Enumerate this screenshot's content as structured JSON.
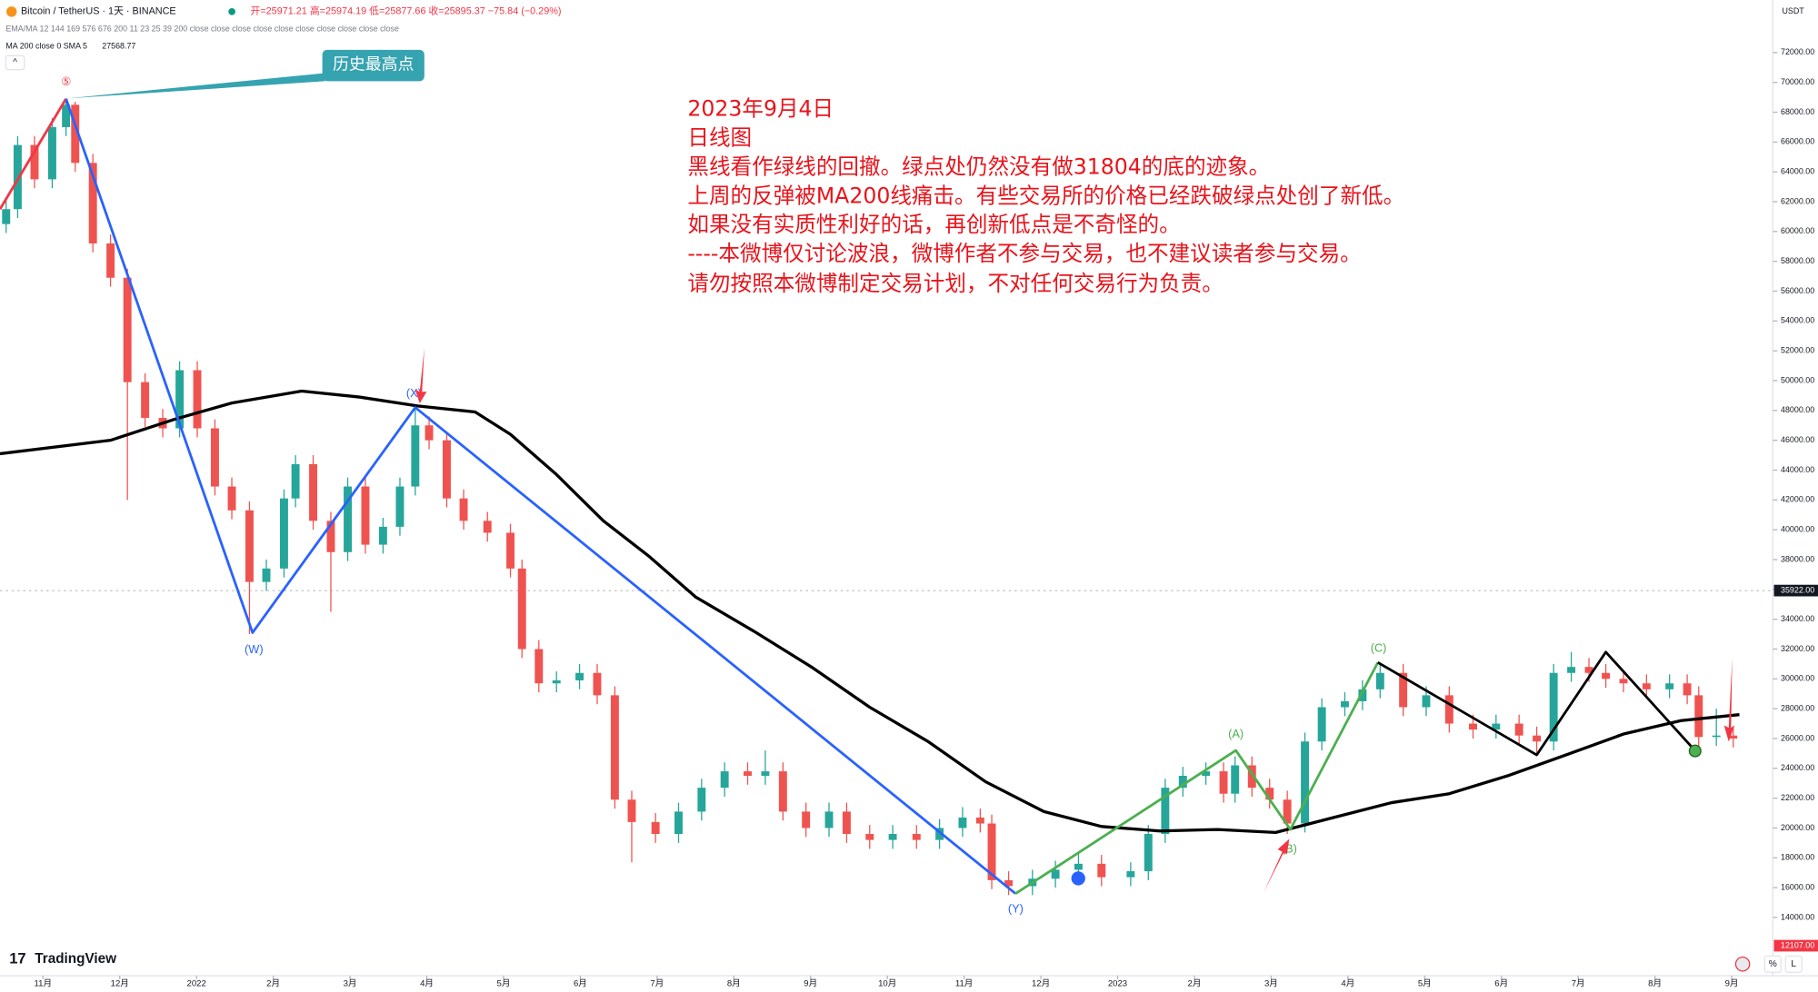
{
  "chart_data": {
    "type": "candlestick",
    "title": "Bitcoin / TetherUS · 1天 · BINANCE",
    "ohlc_text": "开=25971.21 高=25974.19 低=25877.66 收=25895.37 −75.84 (−0.29%)",
    "indicator_text": "EMA/MA 12 144 169 576 676 200 11 23 25 39 200 close close close close close close close close close close",
    "ma_text": "MA 200 close 0 SMA 5",
    "ma_value_label": "27568.77",
    "currency": "USDT",
    "logo": "TradingView",
    "ath_label": "历史最高点",
    "buttons": [
      "%",
      "L"
    ],
    "annotation": [
      "2023年9月4日",
      "日线图",
      "黑线看作绿线的回撤。绿点处仍然没有做31804的底的迹象。",
      "上周的反弹被MA200线痛击。有些交易所的价格已经跌破绿点处创了新低。",
      "如果没有实质性利好的话，再创新低点是不奇怪的。",
      "----本微博仅讨论波浪，微博作者不参与交易，也不建议读者参与交易。",
      "请勿按照本微博制定交易计划，不对任何交易行为负责。"
    ],
    "wave_labels": [
      "⑤",
      "(W)",
      "(X)",
      "(Y)",
      "(A)",
      "(B)",
      "(C)"
    ],
    "up_color": "#26a69a",
    "down_color": "#ef5350",
    "xlim": [
      0.44,
      23.52
    ],
    "ylim": [
      10250,
      75520
    ],
    "xticks": [
      {
        "value": 1,
        "label": "11月"
      },
      {
        "value": 2,
        "label": "12月"
      },
      {
        "value": 3,
        "label": "2022"
      },
      {
        "value": 4,
        "label": "2月"
      },
      {
        "value": 5,
        "label": "3月"
      },
      {
        "value": 6,
        "label": "4月"
      },
      {
        "value": 7,
        "label": "5月"
      },
      {
        "value": 8,
        "label": "6月"
      },
      {
        "value": 9,
        "label": "7月"
      },
      {
        "value": 10,
        "label": "8月"
      },
      {
        "value": 11,
        "label": "9月"
      },
      {
        "value": 12,
        "label": "10月"
      },
      {
        "value": 13,
        "label": "11月"
      },
      {
        "value": 14,
        "label": "12月"
      },
      {
        "value": 15,
        "label": "2023"
      },
      {
        "value": 16,
        "label": "2月"
      },
      {
        "value": 17,
        "label": "3月"
      },
      {
        "value": 18,
        "label": "4月"
      },
      {
        "value": 19,
        "label": "5月"
      },
      {
        "value": 20,
        "label": "6月"
      },
      {
        "value": 21,
        "label": "7月"
      },
      {
        "value": 22,
        "label": "8月"
      },
      {
        "value": 23,
        "label": "9月"
      }
    ],
    "yticks": [
      {
        "value": 14000,
        "label": "14000.00"
      },
      {
        "value": 16000,
        "label": "16000.00"
      },
      {
        "value": 18000,
        "label": "18000.00"
      },
      {
        "value": 20000,
        "label": "20000.00"
      },
      {
        "value": 22000,
        "label": "22000.00"
      },
      {
        "value": 24000,
        "label": "24000.00"
      },
      {
        "value": 26000,
        "label": "26000.00"
      },
      {
        "value": 28000,
        "label": "28000.00"
      },
      {
        "value": 30000,
        "label": "30000.00"
      },
      {
        "value": 32000,
        "label": "32000.00"
      },
      {
        "value": 34000,
        "label": "34000.00"
      },
      {
        "value": 36000,
        "label": "36000.00"
      },
      {
        "value": 38000,
        "label": "38000.00"
      },
      {
        "value": 40000,
        "label": "40000.00"
      },
      {
        "value": 42000,
        "label": "42000.00"
      },
      {
        "value": 44000,
        "label": "44000.00"
      },
      {
        "value": 46000,
        "label": "46000.00"
      },
      {
        "value": 48000,
        "label": "48000.00"
      },
      {
        "value": 50000,
        "label": "50000.00"
      },
      {
        "value": 52000,
        "label": "52000.00"
      },
      {
        "value": 54000,
        "label": "54000.00"
      },
      {
        "value": 56000,
        "label": "56000.00"
      },
      {
        "value": 58000,
        "label": "58000.00"
      },
      {
        "value": 60000,
        "label": "60000.00"
      },
      {
        "value": 62000,
        "label": "62000.00"
      },
      {
        "value": 64000,
        "label": "64000.00"
      },
      {
        "value": 66000,
        "label": "66000.00"
      },
      {
        "value": 68000,
        "label": "68000.00"
      },
      {
        "value": 70000,
        "label": "70000.00"
      },
      {
        "value": 72000,
        "label": "72000.00"
      }
    ],
    "price_tags": [
      {
        "value": 35922,
        "label": "35922.00",
        "color": "#131722"
      },
      {
        "value": 12107,
        "label": "12107.00",
        "color": "#f23645"
      }
    ],
    "grid": false,
    "x": [
      0.52,
      0.67,
      0.89,
      1.12,
      1.3,
      1.42,
      1.65,
      1.88,
      2.1,
      2.33,
      2.56,
      2.78,
      3.01,
      3.24,
      3.46,
      3.69,
      3.91,
      4.14,
      4.29,
      4.52,
      4.75,
      4.97,
      5.2,
      5.43,
      5.65,
      5.85,
      6.03,
      6.26,
      6.48,
      6.79,
      7.09,
      7.24,
      7.46,
      7.69,
      7.99,
      8.22,
      8.45,
      8.67,
      8.98,
      9.28,
      9.58,
      9.88,
      10.18,
      10.41,
      10.64,
      10.94,
      11.24,
      11.47,
      11.77,
      12.07,
      12.38,
      12.68,
      12.98,
      13.21,
      13.36,
      13.58,
      13.89,
      14.19,
      14.49,
      14.79,
      15.17,
      15.4,
      15.62,
      15.85,
      16.15,
      16.38,
      16.53,
      16.75,
      16.98,
      17.21,
      17.44,
      17.66,
      17.96,
      18.19,
      18.42,
      18.72,
      19.02,
      19.32,
      19.63,
      19.93,
      20.23,
      20.46,
      20.68,
      20.91,
      21.14,
      21.36,
      21.59,
      21.89,
      22.19,
      22.42,
      22.57,
      22.8,
      23.02
    ],
    "open": [
      60500,
      61500,
      65800,
      63500,
      67000,
      68500,
      64600,
      59200,
      56900,
      49900,
      47500,
      46800,
      50700,
      46800,
      42900,
      41300,
      36500,
      37400,
      42100,
      44400,
      40600,
      38500,
      42900,
      39000,
      40200,
      42900,
      47000,
      46000,
      42100,
      40600,
      39800,
      37400,
      32000,
      29700,
      29900,
      30400,
      28900,
      21900,
      20400,
      19600,
      21100,
      22700,
      23800,
      23500,
      23800,
      21100,
      20000,
      21100,
      19600,
      19200,
      19600,
      19200,
      20000,
      20700,
      20300,
      16500,
      16100,
      16600,
      17200,
      17600,
      16700,
      17100,
      19600,
      22700,
      23500,
      23800,
      22300,
      24200,
      22700,
      21900,
      20300,
      25800,
      28100,
      28500,
      29300,
      30400,
      28100,
      28900,
      27000,
      26600,
      27000,
      26200,
      25800,
      30400,
      30800,
      30400,
      30000,
      29700,
      29300,
      29700,
      28900,
      26100,
      26200
    ],
    "high": [
      62100,
      66400,
      66400,
      67600,
      68900,
      68700,
      65200,
      59800,
      57500,
      50500,
      48100,
      51300,
      51300,
      47400,
      43500,
      41900,
      38000,
      42700,
      45000,
      45000,
      41200,
      43500,
      43500,
      40800,
      43500,
      48200,
      47600,
      46600,
      42700,
      41200,
      40400,
      38000,
      32600,
      30500,
      31000,
      31000,
      29500,
      22500,
      21000,
      21700,
      23300,
      24400,
      24400,
      25200,
      24400,
      21700,
      21700,
      21700,
      20200,
      20200,
      20200,
      20600,
      21400,
      21300,
      20900,
      17100,
      17200,
      17800,
      18300,
      18200,
      17700,
      20200,
      23300,
      24100,
      24400,
      24400,
      24800,
      24800,
      23300,
      22500,
      26400,
      28700,
      29100,
      29900,
      31000,
      31000,
      29500,
      29500,
      27600,
      27600,
      27600,
      26800,
      31000,
      31800,
      31400,
      31000,
      30600,
      30300,
      30300,
      30300,
      29500,
      28000,
      26800
    ],
    "low": [
      59900,
      60900,
      62900,
      62900,
      66400,
      64000,
      58600,
      56300,
      42000,
      46900,
      46200,
      46200,
      46200,
      42300,
      40700,
      33000,
      35900,
      36800,
      41500,
      40000,
      34500,
      37900,
      38400,
      38400,
      39600,
      42300,
      45400,
      41500,
      40000,
      39200,
      36800,
      31400,
      29100,
      29100,
      29300,
      28300,
      21300,
      17700,
      19000,
      19000,
      20500,
      22100,
      22900,
      22900,
      20500,
      19400,
      19400,
      19000,
      18600,
      18600,
      18600,
      18600,
      19400,
      19700,
      15900,
      15500,
      15500,
      16000,
      16600,
      16100,
      16100,
      16500,
      19000,
      22100,
      22900,
      21700,
      21700,
      22100,
      21300,
      19600,
      19700,
      25200,
      27500,
      27900,
      28700,
      27500,
      27500,
      26400,
      26000,
      26000,
      25600,
      25000,
      25200,
      29800,
      29800,
      29400,
      29100,
      28700,
      28700,
      28300,
      25300,
      25500,
      25400
    ],
    "close": [
      61500,
      65800,
      63500,
      67000,
      68500,
      64600,
      59200,
      56900,
      49900,
      47500,
      46800,
      50700,
      46800,
      42900,
      41300,
      36500,
      37400,
      42100,
      44400,
      40600,
      38500,
      42900,
      39000,
      40200,
      42900,
      47000,
      46000,
      42100,
      40600,
      39800,
      37400,
      32000,
      29700,
      29900,
      30400,
      28900,
      21900,
      20400,
      19600,
      21100,
      22700,
      23800,
      23500,
      23800,
      21100,
      20000,
      21100,
      19600,
      19200,
      19600,
      19200,
      20000,
      20700,
      20300,
      16500,
      16100,
      16600,
      17200,
      17600,
      16700,
      17100,
      19600,
      22700,
      23500,
      23800,
      22300,
      24200,
      22700,
      21900,
      20300,
      25800,
      28100,
      28500,
      29300,
      30400,
      28100,
      28900,
      27000,
      26600,
      27000,
      26200,
      25800,
      30400,
      30800,
      30400,
      30000,
      29700,
      29300,
      29700,
      28900,
      26100,
      26200,
      26000
    ],
    "lines": [
      {
        "color": "#000000",
        "width": 2.6,
        "x": [
          0.44,
          1.88,
          2.71,
          3.46,
          4.37,
          5.12,
          5.88,
          6.63,
          7.09,
          7.69,
          8.3,
          8.9,
          9.5,
          10.26,
          11.01,
          11.77,
          12.53,
          13.28,
          14.04,
          14.79,
          15.55,
          16.3,
          17.06,
          17.81,
          18.57,
          19.32,
          20.08,
          20.84,
          21.59,
          22.34,
          23.1
        ],
        "values": [
          45100,
          46000,
          47400,
          48500,
          49300,
          48900,
          48300,
          47900,
          46400,
          43700,
          40600,
          38200,
          35500,
          33200,
          30800,
          28100,
          25800,
          23100,
          21100,
          20100,
          19800,
          19900,
          19700,
          20700,
          21700,
          22300,
          23500,
          24900,
          26300,
          27200,
          27600
        ]
      },
      {
        "color": "#f23645",
        "width": 2.2,
        "x": [
          0.44,
          1.3
        ],
        "values": [
          61500,
          68900
        ]
      },
      {
        "color": "#2962ff",
        "width": 2.2,
        "x": [
          1.3,
          3.73,
          5.85,
          13.67
        ],
        "values": [
          68900,
          33100,
          48200,
          15600
        ]
      },
      {
        "color": "#4caf50",
        "width": 2.2,
        "x": [
          13.67,
          16.54,
          17.25,
          18.39
        ],
        "values": [
          15600,
          25200,
          19900,
          31100
        ]
      },
      {
        "color": "#000000",
        "width": 2.2,
        "x": [
          18.39,
          20.46,
          21.36,
          22.52
        ],
        "values": [
          31100,
          24900,
          31800,
          25200
        ]
      }
    ]
  }
}
